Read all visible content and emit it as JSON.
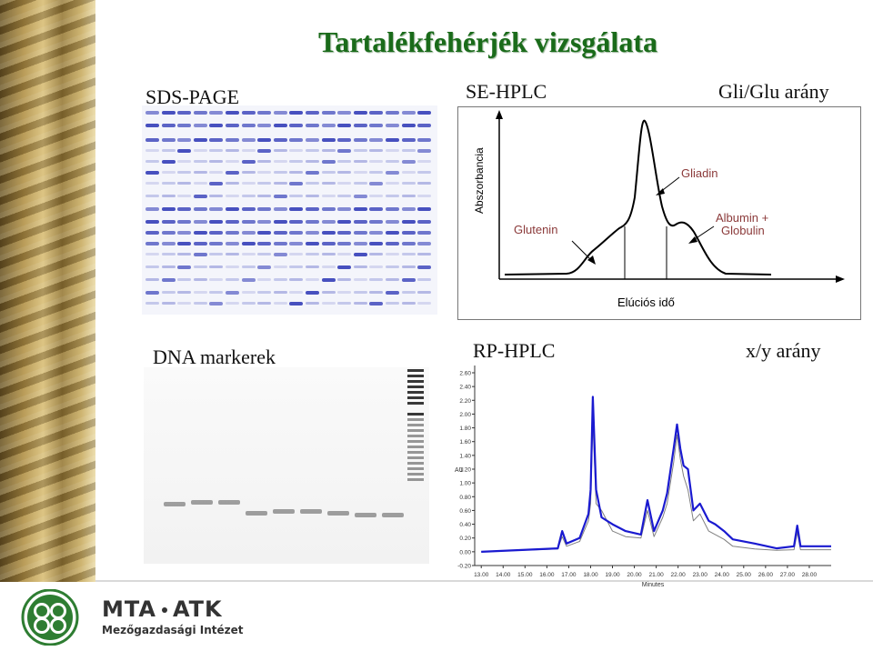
{
  "title": "Tartalékfehérjék vizsgálata",
  "headers": {
    "sds_page": "SDS-PAGE",
    "se_hplc": "SE-HPLC",
    "gli_glu": "Gli/Glu arány",
    "dna": "DNA markerek",
    "rp_hplc": "RP-HPLC",
    "xy": "x/y arány"
  },
  "se_hplc": {
    "ylabel": "Abszorbancia",
    "xlabel": "Elúciós idő",
    "labels": {
      "gliadin": "Gliadin",
      "glutenin": "Glutenin",
      "albumin1": "Albumin +",
      "albumin2": "Globulin"
    }
  },
  "chart_data": {
    "type": "line",
    "xlabel": "Minutes",
    "ylabel": "AU",
    "xlim": [
      12.7,
      29.0
    ],
    "ylim": [
      -0.2,
      2.6
    ],
    "x_ticks": [
      "13.00",
      "14.00",
      "15.00",
      "16.00",
      "17.00",
      "18.00",
      "19.00",
      "20.00",
      "21.00",
      "22.00",
      "23.00",
      "24.00",
      "25.00",
      "26.00",
      "27.00",
      "28.00"
    ],
    "y_ticks": [
      "2.60",
      "2.40",
      "2.20",
      "2.00",
      "1.80",
      "1.60",
      "1.40",
      "1.20",
      "1.00",
      "0.80",
      "0.60",
      "0.40",
      "0.20",
      "0.00",
      "-0.20"
    ],
    "series": [
      {
        "color": "#1a1ad0",
        "peaks": [
          [
            13.0,
            0.0
          ],
          [
            16.5,
            0.05
          ],
          [
            16.7,
            0.3
          ],
          [
            16.9,
            0.12
          ],
          [
            17.5,
            0.2
          ],
          [
            17.9,
            0.55
          ],
          [
            18.0,
            0.9
          ],
          [
            18.1,
            2.25
          ],
          [
            18.25,
            0.9
          ],
          [
            18.5,
            0.5
          ],
          [
            19.0,
            0.4
          ],
          [
            19.6,
            0.3
          ],
          [
            20.3,
            0.25
          ],
          [
            20.6,
            0.75
          ],
          [
            20.9,
            0.3
          ],
          [
            21.3,
            0.6
          ],
          [
            21.5,
            0.85
          ],
          [
            21.8,
            1.5
          ],
          [
            21.95,
            1.85
          ],
          [
            22.1,
            1.5
          ],
          [
            22.25,
            1.25
          ],
          [
            22.45,
            1.2
          ],
          [
            22.7,
            0.6
          ],
          [
            23.0,
            0.7
          ],
          [
            23.4,
            0.45
          ],
          [
            23.7,
            0.4
          ],
          [
            24.1,
            0.3
          ],
          [
            24.5,
            0.18
          ],
          [
            25.5,
            0.12
          ],
          [
            26.5,
            0.05
          ],
          [
            27.3,
            0.08
          ],
          [
            27.45,
            0.38
          ],
          [
            27.6,
            0.08
          ],
          [
            28.5,
            0.08
          ],
          [
            29.0,
            0.08
          ]
        ]
      },
      {
        "color": "#808080",
        "peaks": [
          [
            13.0,
            0.0
          ],
          [
            16.5,
            0.04
          ],
          [
            16.7,
            0.22
          ],
          [
            16.9,
            0.08
          ],
          [
            17.5,
            0.15
          ],
          [
            17.9,
            0.45
          ],
          [
            18.0,
            0.7
          ],
          [
            18.1,
            1.9
          ],
          [
            18.25,
            0.7
          ],
          [
            18.5,
            0.6
          ],
          [
            19.0,
            0.3
          ],
          [
            19.6,
            0.22
          ],
          [
            20.3,
            0.2
          ],
          [
            20.6,
            0.6
          ],
          [
            20.9,
            0.22
          ],
          [
            21.3,
            0.5
          ],
          [
            21.5,
            0.7
          ],
          [
            21.8,
            1.3
          ],
          [
            21.95,
            1.7
          ],
          [
            22.1,
            1.35
          ],
          [
            22.25,
            1.1
          ],
          [
            22.45,
            0.9
          ],
          [
            22.7,
            0.45
          ],
          [
            23.0,
            0.55
          ],
          [
            23.4,
            0.3
          ],
          [
            23.7,
            0.25
          ],
          [
            24.1,
            0.18
          ],
          [
            24.5,
            0.08
          ],
          [
            25.5,
            0.04
          ],
          [
            26.5,
            0.02
          ],
          [
            27.3,
            0.03
          ],
          [
            27.45,
            0.28
          ],
          [
            27.6,
            0.03
          ],
          [
            28.5,
            0.03
          ],
          [
            29.0,
            0.03
          ]
        ]
      }
    ]
  },
  "logo": {
    "name": "MTA",
    "name2": "ATK",
    "subtitle": "Mezőgazdasági Intézet"
  }
}
